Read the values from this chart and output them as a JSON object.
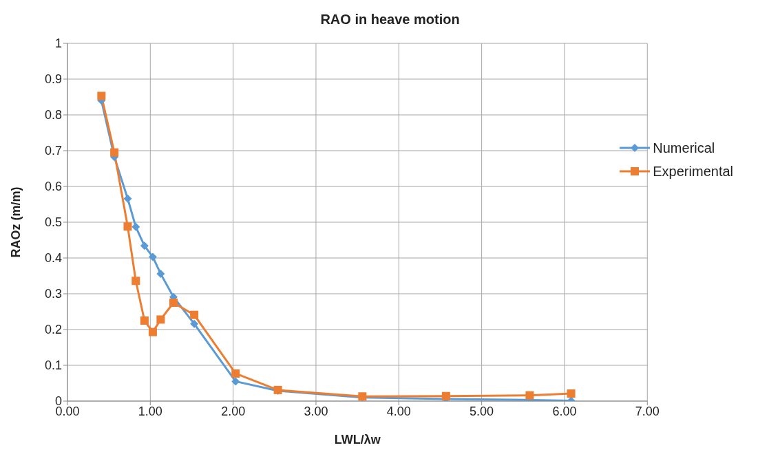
{
  "chart_data": {
    "type": "line",
    "title": "RAO in heave motion",
    "xlabel": "LWL/λw",
    "ylabel": "RAOz (m/m)",
    "x": [
      0.41,
      0.566,
      0.727,
      0.825,
      0.93,
      1.03,
      1.125,
      1.28,
      1.53,
      2.03,
      2.54,
      3.56,
      4.57,
      5.58,
      6.08
    ],
    "series": [
      {
        "name": "Numerical",
        "color": "#5b9bd5",
        "marker": "diamond",
        "values": [
          0.84,
          0.682,
          0.566,
          0.487,
          0.434,
          0.403,
          0.356,
          0.291,
          0.216,
          0.055,
          0.029,
          0.01,
          0.006,
          0.003,
          0.001
        ]
      },
      {
        "name": "Experimental",
        "color": "#ed7d31",
        "marker": "square",
        "values": [
          0.853,
          0.695,
          0.488,
          0.336,
          0.225,
          0.193,
          0.228,
          0.275,
          0.241,
          0.077,
          0.031,
          0.013,
          0.014,
          0.016,
          0.021
        ]
      }
    ],
    "xlim": [
      0,
      7
    ],
    "xticks": [
      {
        "value": 0,
        "label": "0.00"
      },
      {
        "value": 1,
        "label": "1.00"
      },
      {
        "value": 2,
        "label": "2.00"
      },
      {
        "value": 3,
        "label": "3.00"
      },
      {
        "value": 4,
        "label": "4.00"
      },
      {
        "value": 5,
        "label": "5.00"
      },
      {
        "value": 6,
        "label": "6.00"
      },
      {
        "value": 7,
        "label": "7.00"
      }
    ],
    "ylim": [
      0,
      1
    ],
    "yticks": [
      0,
      0.1,
      0.2,
      0.3,
      0.4,
      0.5,
      0.6,
      0.7,
      0.8,
      0.9,
      1
    ],
    "grid": true,
    "legend": "right",
    "line_style": "solid"
  }
}
